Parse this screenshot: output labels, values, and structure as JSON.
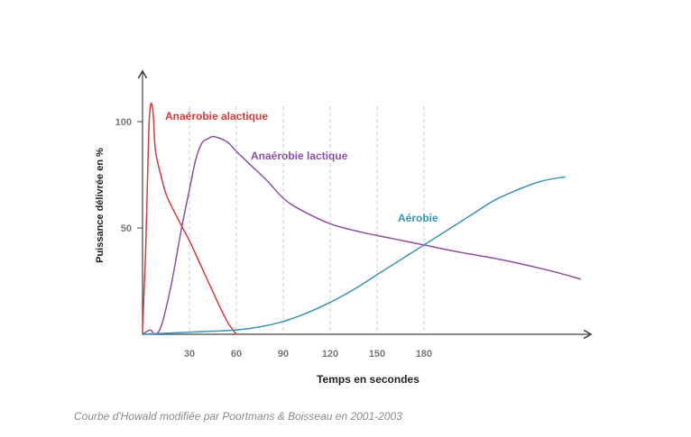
{
  "chart_data": {
    "type": "line",
    "xlabel": "Temps en secondes",
    "ylabel": "Puissance délivrée en %",
    "x_ticks": [
      30,
      60,
      90,
      120,
      150,
      180
    ],
    "y_ticks": [
      50,
      100
    ],
    "xlim": [
      0,
      300
    ],
    "ylim": [
      0,
      105
    ],
    "grid": "vertical dashed at x ticks",
    "series": [
      {
        "name": "Anaérobie alactique",
        "color": "#d63b3b",
        "x": [
          0,
          2,
          4,
          5,
          6,
          7,
          8,
          10,
          12,
          15,
          20,
          25,
          30,
          35,
          40,
          45,
          50,
          55,
          60
        ],
        "y": [
          2,
          40,
          95,
          107,
          108,
          102,
          88,
          80,
          74,
          66,
          58,
          51,
          44,
          36,
          28,
          20,
          12,
          5,
          0
        ]
      },
      {
        "name": "Anaérobie lactique",
        "color": "#8a4fa6",
        "x": [
          0,
          5,
          8,
          12,
          18,
          25,
          30,
          34,
          38,
          42,
          45,
          50,
          55,
          60,
          70,
          80,
          90,
          100,
          120,
          140,
          160,
          180,
          200,
          230,
          260,
          280
        ],
        "y": [
          0,
          2,
          0,
          4,
          22,
          50,
          68,
          82,
          90,
          92,
          93,
          92,
          90,
          86,
          79,
          72,
          64,
          59,
          52,
          48,
          45,
          42,
          39,
          35,
          30,
          26
        ]
      },
      {
        "name": "Aérobie",
        "color": "#3a93b7",
        "x": [
          0,
          30,
          45,
          60,
          75,
          90,
          105,
          120,
          135,
          150,
          165,
          180,
          195,
          210,
          225,
          240,
          255,
          270
        ],
        "y": [
          0,
          1,
          1.5,
          2,
          3.5,
          6,
          10,
          15,
          21,
          28,
          35,
          42,
          49,
          56,
          63,
          68,
          72,
          74
        ]
      }
    ]
  },
  "caption": "Courbe d'Howald modifiée par Poortmans & Boisseau en 2001-2003"
}
